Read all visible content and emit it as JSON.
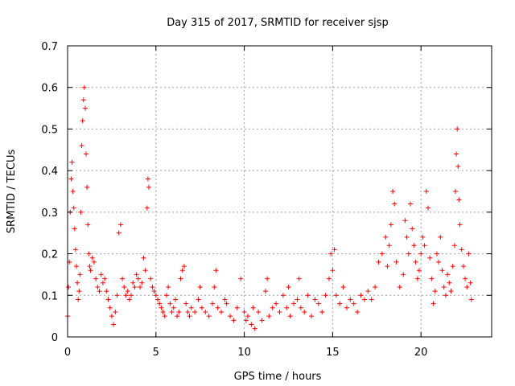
{
  "chart_data": {
    "type": "scatter",
    "title": "Day 315 of 2017, SRMTID for receiver sjsp",
    "xlabel": "GPS time / hours",
    "ylabel": "SRMTID / TECUs",
    "xlim": [
      0,
      24
    ],
    "ylim": [
      0,
      0.7
    ],
    "x_ticks": [
      0,
      5,
      10,
      15,
      20
    ],
    "y_ticks": [
      0,
      0.1,
      0.2,
      0.3,
      0.4,
      0.5,
      0.6,
      0.7
    ],
    "grid": true,
    "marker": "+",
    "color": "#ff0000",
    "series": [
      {
        "name": "SRMTID",
        "points": [
          [
            0.0,
            0.05
          ],
          [
            0.05,
            0.12
          ],
          [
            0.1,
            0.18
          ],
          [
            0.15,
            0.3
          ],
          [
            0.2,
            0.38
          ],
          [
            0.25,
            0.42
          ],
          [
            0.3,
            0.35
          ],
          [
            0.35,
            0.31
          ],
          [
            0.4,
            0.26
          ],
          [
            0.45,
            0.21
          ],
          [
            0.5,
            0.17
          ],
          [
            0.55,
            0.13
          ],
          [
            0.6,
            0.09
          ],
          [
            0.65,
            0.11
          ],
          [
            0.7,
            0.15
          ],
          [
            0.75,
            0.3
          ],
          [
            0.8,
            0.46
          ],
          [
            0.85,
            0.52
          ],
          [
            0.9,
            0.57
          ],
          [
            0.95,
            0.6
          ],
          [
            1.0,
            0.55
          ],
          [
            1.05,
            0.44
          ],
          [
            1.1,
            0.36
          ],
          [
            1.15,
            0.27
          ],
          [
            1.2,
            0.2
          ],
          [
            1.25,
            0.17
          ],
          [
            1.3,
            0.16
          ],
          [
            1.4,
            0.19
          ],
          [
            1.5,
            0.18
          ],
          [
            1.6,
            0.14
          ],
          [
            1.7,
            0.12
          ],
          [
            1.8,
            0.11
          ],
          [
            1.9,
            0.15
          ],
          [
            2.0,
            0.13
          ],
          [
            2.1,
            0.14
          ],
          [
            2.2,
            0.11
          ],
          [
            2.3,
            0.09
          ],
          [
            2.4,
            0.07
          ],
          [
            2.5,
            0.05
          ],
          [
            2.6,
            0.03
          ],
          [
            2.7,
            0.06
          ],
          [
            2.8,
            0.1
          ],
          [
            2.9,
            0.25
          ],
          [
            3.0,
            0.27
          ],
          [
            3.1,
            0.14
          ],
          [
            3.2,
            0.12
          ],
          [
            3.3,
            0.1
          ],
          [
            3.4,
            0.11
          ],
          [
            3.5,
            0.09
          ],
          [
            3.6,
            0.1
          ],
          [
            3.7,
            0.13
          ],
          [
            3.8,
            0.12
          ],
          [
            3.9,
            0.15
          ],
          [
            4.0,
            0.14
          ],
          [
            4.1,
            0.12
          ],
          [
            4.2,
            0.13
          ],
          [
            4.3,
            0.19
          ],
          [
            4.4,
            0.16
          ],
          [
            4.5,
            0.31
          ],
          [
            4.55,
            0.38
          ],
          [
            4.6,
            0.36
          ],
          [
            4.7,
            0.14
          ],
          [
            4.8,
            0.12
          ],
          [
            4.9,
            0.11
          ],
          [
            5.0,
            0.1
          ],
          [
            5.1,
            0.09
          ],
          [
            5.2,
            0.08
          ],
          [
            5.3,
            0.07
          ],
          [
            5.4,
            0.06
          ],
          [
            5.5,
            0.05
          ],
          [
            5.6,
            0.1
          ],
          [
            5.7,
            0.12
          ],
          [
            5.8,
            0.08
          ],
          [
            5.9,
            0.06
          ],
          [
            6.0,
            0.07
          ],
          [
            6.1,
            0.09
          ],
          [
            6.2,
            0.05
          ],
          [
            6.3,
            0.06
          ],
          [
            6.4,
            0.14
          ],
          [
            6.5,
            0.16
          ],
          [
            6.6,
            0.17
          ],
          [
            6.7,
            0.08
          ],
          [
            6.8,
            0.06
          ],
          [
            6.9,
            0.05
          ],
          [
            7.0,
            0.07
          ],
          [
            7.2,
            0.06
          ],
          [
            7.4,
            0.09
          ],
          [
            7.5,
            0.12
          ],
          [
            7.6,
            0.07
          ],
          [
            7.8,
            0.06
          ],
          [
            8.0,
            0.05
          ],
          [
            8.2,
            0.08
          ],
          [
            8.3,
            0.12
          ],
          [
            8.4,
            0.16
          ],
          [
            8.5,
            0.07
          ],
          [
            8.7,
            0.06
          ],
          [
            8.9,
            0.09
          ],
          [
            9.0,
            0.08
          ],
          [
            9.2,
            0.05
          ],
          [
            9.4,
            0.04
          ],
          [
            9.6,
            0.07
          ],
          [
            9.8,
            0.14
          ],
          [
            10.0,
            0.06
          ],
          [
            10.1,
            0.04
          ],
          [
            10.2,
            0.05
          ],
          [
            10.4,
            0.03
          ],
          [
            10.5,
            0.07
          ],
          [
            10.6,
            0.02
          ],
          [
            10.8,
            0.06
          ],
          [
            11.0,
            0.04
          ],
          [
            11.2,
            0.11
          ],
          [
            11.3,
            0.14
          ],
          [
            11.4,
            0.05
          ],
          [
            11.6,
            0.07
          ],
          [
            11.8,
            0.08
          ],
          [
            12.0,
            0.06
          ],
          [
            12.2,
            0.1
          ],
          [
            12.4,
            0.07
          ],
          [
            12.5,
            0.12
          ],
          [
            12.6,
            0.05
          ],
          [
            12.8,
            0.08
          ],
          [
            13.0,
            0.09
          ],
          [
            13.1,
            0.14
          ],
          [
            13.2,
            0.07
          ],
          [
            13.4,
            0.06
          ],
          [
            13.6,
            0.1
          ],
          [
            13.8,
            0.05
          ],
          [
            14.0,
            0.09
          ],
          [
            14.2,
            0.08
          ],
          [
            14.4,
            0.06
          ],
          [
            14.6,
            0.1
          ],
          [
            14.8,
            0.14
          ],
          [
            14.9,
            0.2
          ],
          [
            15.0,
            0.16
          ],
          [
            15.1,
            0.21
          ],
          [
            15.2,
            0.1
          ],
          [
            15.4,
            0.08
          ],
          [
            15.6,
            0.12
          ],
          [
            15.8,
            0.07
          ],
          [
            16.0,
            0.09
          ],
          [
            16.2,
            0.08
          ],
          [
            16.4,
            0.06
          ],
          [
            16.6,
            0.1
          ],
          [
            16.8,
            0.09
          ],
          [
            17.0,
            0.11
          ],
          [
            17.2,
            0.09
          ],
          [
            17.4,
            0.12
          ],
          [
            17.6,
            0.18
          ],
          [
            17.8,
            0.2
          ],
          [
            18.0,
            0.24
          ],
          [
            18.1,
            0.17
          ],
          [
            18.2,
            0.22
          ],
          [
            18.3,
            0.27
          ],
          [
            18.4,
            0.35
          ],
          [
            18.5,
            0.32
          ],
          [
            18.6,
            0.18
          ],
          [
            18.8,
            0.12
          ],
          [
            19.0,
            0.15
          ],
          [
            19.1,
            0.28
          ],
          [
            19.2,
            0.24
          ],
          [
            19.3,
            0.2
          ],
          [
            19.4,
            0.32
          ],
          [
            19.5,
            0.26
          ],
          [
            19.6,
            0.22
          ],
          [
            19.7,
            0.18
          ],
          [
            19.8,
            0.14
          ],
          [
            19.9,
            0.16
          ],
          [
            20.0,
            0.2
          ],
          [
            20.1,
            0.24
          ],
          [
            20.2,
            0.22
          ],
          [
            20.3,
            0.35
          ],
          [
            20.4,
            0.31
          ],
          [
            20.5,
            0.19
          ],
          [
            20.6,
            0.14
          ],
          [
            20.7,
            0.08
          ],
          [
            20.8,
            0.11
          ],
          [
            20.9,
            0.2
          ],
          [
            21.0,
            0.18
          ],
          [
            21.1,
            0.24
          ],
          [
            21.2,
            0.16
          ],
          [
            21.3,
            0.12
          ],
          [
            21.4,
            0.1
          ],
          [
            21.5,
            0.15
          ],
          [
            21.6,
            0.13
          ],
          [
            21.7,
            0.11
          ],
          [
            21.8,
            0.17
          ],
          [
            21.9,
            0.22
          ],
          [
            21.95,
            0.35
          ],
          [
            22.0,
            0.44
          ],
          [
            22.05,
            0.5
          ],
          [
            22.1,
            0.41
          ],
          [
            22.15,
            0.33
          ],
          [
            22.2,
            0.27
          ],
          [
            22.3,
            0.21
          ],
          [
            22.4,
            0.17
          ],
          [
            22.5,
            0.14
          ],
          [
            22.6,
            0.12
          ],
          [
            22.7,
            0.2
          ],
          [
            22.8,
            0.13
          ],
          [
            22.85,
            0.09
          ]
        ]
      }
    ]
  }
}
